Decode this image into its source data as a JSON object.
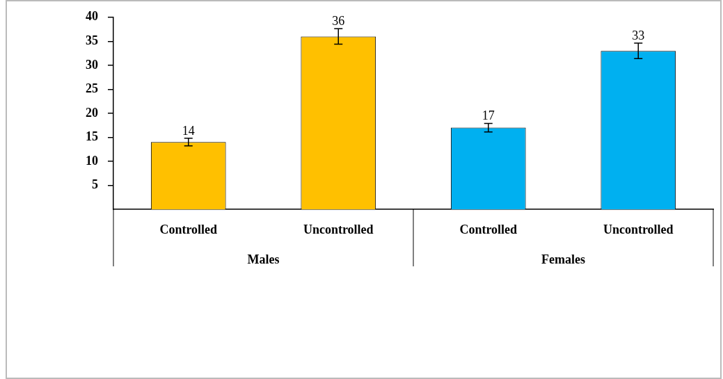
{
  "chart_data": {
    "type": "bar",
    "categories": [
      "Controlled",
      "Uncontrolled",
      "Controlled",
      "Uncontrolled"
    ],
    "values": [
      14,
      36,
      17,
      33
    ],
    "colors": [
      "#ffc000",
      "#ffc000",
      "#00b0f0",
      "#00b0f0"
    ],
    "errors": [
      0.8,
      1.6,
      0.9,
      1.6
    ],
    "data_labels": true,
    "annotations": [
      "Males",
      "Females"
    ],
    "ylim": [
      0,
      40
    ],
    "yticks": [
      5,
      10,
      15,
      20,
      25,
      30,
      35,
      40
    ],
    "grid": false,
    "legend": false
  }
}
